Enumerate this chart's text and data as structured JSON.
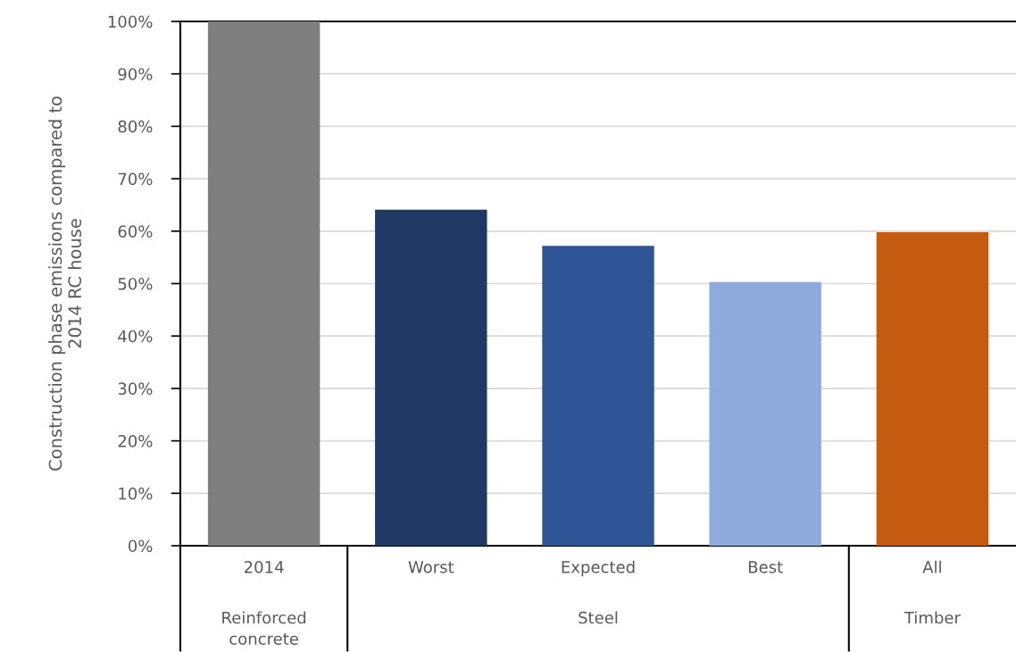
{
  "chart_data": {
    "type": "bar",
    "ylabel": "Construction phase emissions compared to\n2014 RC house",
    "categories": [
      "2014",
      "Worst",
      "Expected",
      "Best",
      "All"
    ],
    "values": [
      100,
      64.1,
      57.2,
      50.3,
      59.8
    ],
    "colors": [
      "#7f7f7f",
      "#1f3864",
      "#2f5597",
      "#8faadc",
      "#c55a11"
    ],
    "ylim": [
      0,
      100
    ],
    "yticks": [
      {
        "value": 0,
        "label": "0%"
      },
      {
        "value": 10,
        "label": "10%"
      },
      {
        "value": 20,
        "label": "20%"
      },
      {
        "value": 30,
        "label": "30%"
      },
      {
        "value": 40,
        "label": "40%"
      },
      {
        "value": 50,
        "label": "50%"
      },
      {
        "value": 60,
        "label": "60%"
      },
      {
        "value": 70,
        "label": "70%"
      },
      {
        "value": 80,
        "label": "80%"
      },
      {
        "value": 90,
        "label": "90%"
      },
      {
        "value": 100,
        "label": "100%"
      }
    ],
    "grid": "y",
    "annotations": [
      "Reinforced concrete",
      "Steel",
      "Timber"
    ]
  }
}
